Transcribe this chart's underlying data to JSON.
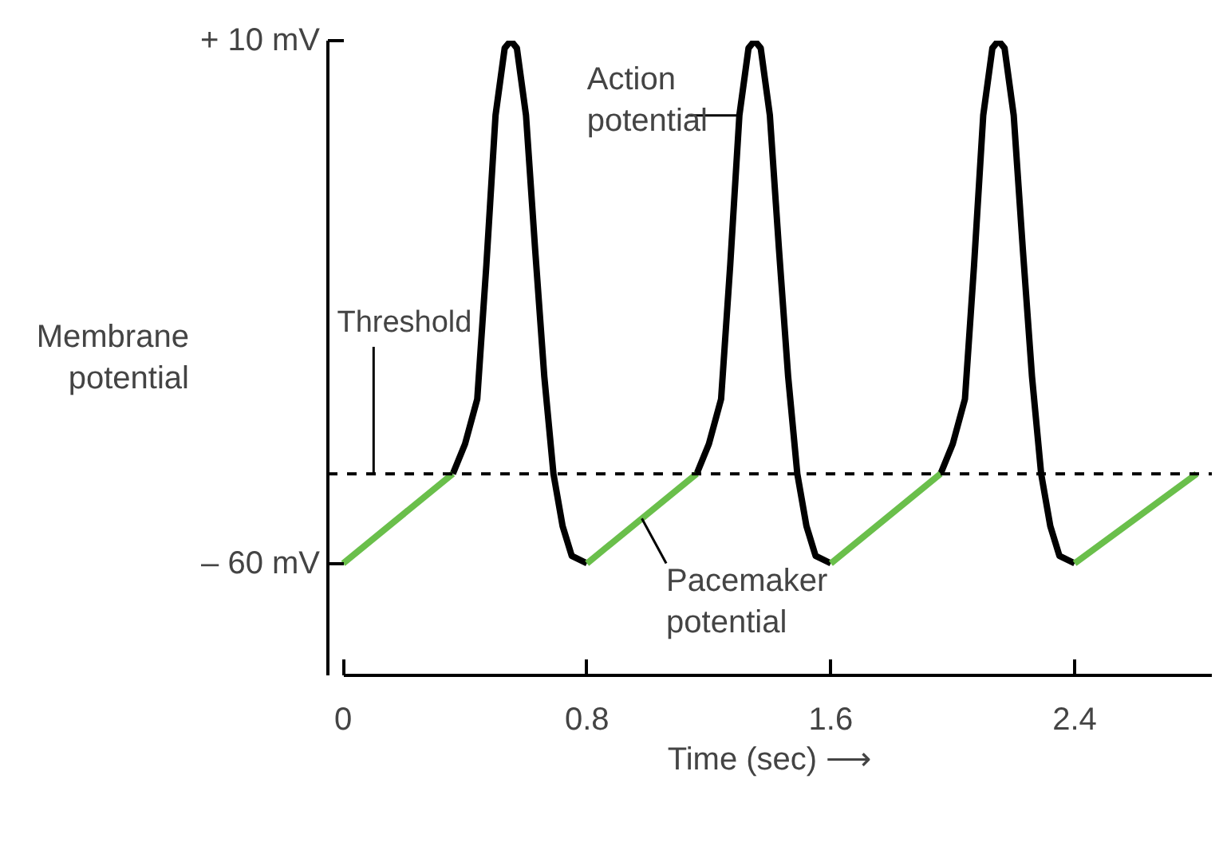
{
  "chart_data": {
    "type": "line",
    "ylabel": "Membrane potential",
    "xlabel": "Time (sec) ⟶",
    "xlim": [
      -0.05,
      2.85
    ],
    "xticks": [
      0,
      0.8,
      1.6,
      2.4
    ],
    "ylim": [
      -75,
      10
    ],
    "yticks": [
      {
        "value": -60,
        "label": "– 60 mV"
      },
      {
        "value": 10,
        "label": "+ 10 mV"
      }
    ],
    "grid": false,
    "series": [
      {
        "color": "#000000",
        "x": [
          0.36,
          0.4,
          0.44,
          0.47,
          0.5,
          0.53,
          0.55,
          0.57,
          0.6,
          0.63,
          0.66,
          0.69,
          0.72,
          0.75,
          0.8,
          null,
          1.16,
          1.2,
          1.24,
          1.27,
          1.3,
          1.33,
          1.35,
          1.37,
          1.4,
          1.43,
          1.46,
          1.49,
          1.52,
          1.55,
          1.6,
          null,
          1.96,
          2.0,
          2.04,
          2.07,
          2.1,
          2.13,
          2.15,
          2.17,
          2.2,
          2.23,
          2.26,
          2.29,
          2.32,
          2.35,
          2.4
        ],
        "values": [
          -48,
          -44,
          -38,
          -20,
          0,
          9,
          10,
          9,
          0,
          -18,
          -35,
          -48,
          -55,
          -59,
          -60,
          null,
          -48,
          -44,
          -38,
          -20,
          0,
          9,
          10,
          9,
          0,
          -18,
          -35,
          -48,
          -55,
          -59,
          -60,
          null,
          -48,
          -44,
          -38,
          -20,
          0,
          9,
          10,
          9,
          0,
          -18,
          -35,
          -48,
          -55,
          -59,
          -60
        ]
      },
      {
        "color": "#6abf4b",
        "x": [
          0,
          0.36,
          null,
          0.8,
          1.16,
          null,
          1.6,
          1.96,
          null,
          2.4,
          2.8
        ],
        "values": [
          -60,
          -48,
          null,
          -60,
          -48,
          null,
          -60,
          -48,
          null,
          -60,
          -48
        ]
      }
    ],
    "ref_lines": [
      {
        "axis": "y",
        "value": -48,
        "label": "Threshold",
        "line_style": "dashed",
        "color": "#000000"
      }
    ],
    "annotations": [
      {
        "text": "Action potential",
        "x": 1.3,
        "y": 0
      },
      {
        "text": "Pacemaker potential",
        "x": 0.98,
        "y": -54
      }
    ]
  }
}
